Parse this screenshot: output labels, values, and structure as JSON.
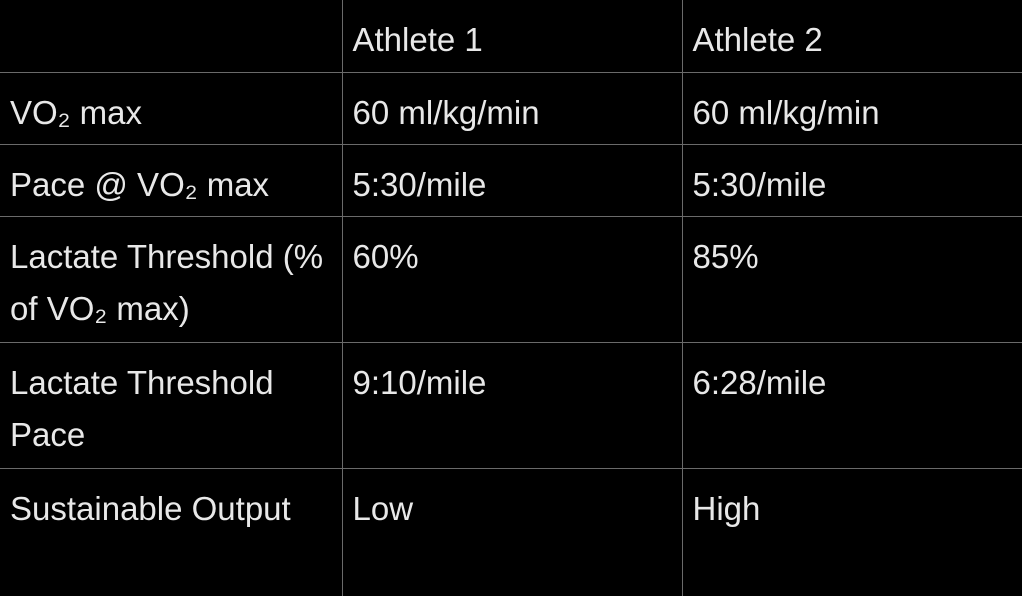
{
  "headers": [
    "",
    "Athlete 1",
    "Athlete 2"
  ],
  "rows": [
    {
      "label": "VO₂ max",
      "a1": "60 ml/kg/min",
      "a2": "60 ml/kg/min"
    },
    {
      "label": "Pace @ VO₂ max",
      "a1": "5:30/mile",
      "a2": "5:30/mile"
    },
    {
      "label": "Lactate Threshold (% of VO₂ max)",
      "a1": "60%",
      "a2": "85%"
    },
    {
      "label": "Lactate Threshold Pace",
      "a1": "9:10/mile",
      "a2": "6:28/mile"
    },
    {
      "label": "Sustainable Output",
      "a1": "Low",
      "a2": "High"
    }
  ]
}
